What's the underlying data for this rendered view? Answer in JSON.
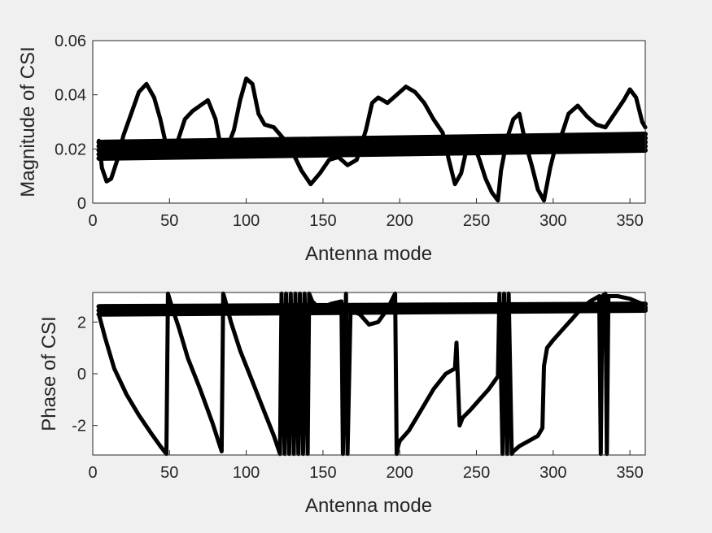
{
  "chart_data": [
    {
      "type": "line",
      "xlabel": "Antenna mode",
      "ylabel": "Magnitude of CSI",
      "xlim": [
        0,
        360
      ],
      "ylim": [
        0,
        0.06
      ],
      "xticks": [
        0,
        50,
        100,
        150,
        200,
        250,
        300,
        350
      ],
      "yticks": [
        0,
        0.02,
        0.04,
        0.06
      ],
      "ytick_labels": [
        "0",
        "0.02",
        "0.04",
        "0.06"
      ],
      "grid": false,
      "line_color": "#000000",
      "series": [
        {
          "x": [
            4,
            6,
            9,
            12,
            16,
            20,
            25,
            30,
            35,
            40,
            44,
            48,
            52,
            56,
            60,
            65,
            70,
            75,
            80,
            84,
            88,
            92,
            96,
            100,
            104,
            108,
            112,
            118,
            124,
            130,
            136,
            142,
            148,
            154,
            160,
            166,
            172,
            178,
            182,
            186,
            192,
            198,
            204,
            210,
            216,
            222,
            228,
            232,
            236,
            240,
            244,
            248,
            252,
            256,
            260,
            264,
            266,
            270,
            274,
            278,
            282,
            286,
            290,
            294,
            298,
            302,
            306,
            310,
            316,
            322,
            328,
            334,
            340,
            346,
            350,
            354,
            358,
            360
          ],
          "y": [
            0.023,
            0.013,
            0.008,
            0.009,
            0.016,
            0.025,
            0.033,
            0.041,
            0.044,
            0.039,
            0.031,
            0.021,
            0.017,
            0.024,
            0.031,
            0.034,
            0.036,
            0.038,
            0.031,
            0.019,
            0.021,
            0.027,
            0.038,
            0.046,
            0.044,
            0.033,
            0.029,
            0.028,
            0.024,
            0.019,
            0.012,
            0.007,
            0.011,
            0.016,
            0.017,
            0.014,
            0.016,
            0.027,
            0.037,
            0.039,
            0.037,
            0.04,
            0.043,
            0.041,
            0.037,
            0.031,
            0.026,
            0.016,
            0.007,
            0.011,
            0.021,
            0.022,
            0.016,
            0.009,
            0.004,
            0.001,
            0.012,
            0.024,
            0.031,
            0.033,
            0.022,
            0.014,
            0.005,
            0.001,
            0.013,
            0.022,
            0.026,
            0.033,
            0.036,
            0.032,
            0.029,
            0.028,
            0.033,
            0.038,
            0.042,
            0.039,
            0.03,
            0.028
          ]
        },
        {
          "x": [
            4,
            360
          ],
          "y": [
            0.0225,
            0.0255
          ]
        },
        {
          "x": [
            4,
            360
          ],
          "y": [
            0.021,
            0.024
          ]
        },
        {
          "x": [
            4,
            360
          ],
          "y": [
            0.0195,
            0.0225
          ]
        },
        {
          "x": [
            4,
            360
          ],
          "y": [
            0.018,
            0.021
          ]
        },
        {
          "x": [
            4,
            360
          ],
          "y": [
            0.0165,
            0.0195
          ]
        }
      ]
    },
    {
      "type": "line",
      "xlabel": "Antenna mode",
      "ylabel": "Phase of CSI",
      "xlim": [
        0,
        360
      ],
      "ylim": [
        -3.1416,
        3.1416
      ],
      "xticks": [
        0,
        50,
        100,
        150,
        200,
        250,
        300,
        350
      ],
      "yticks": [
        -2,
        0,
        2
      ],
      "ytick_labels": [
        "-2",
        "0",
        "2"
      ],
      "grid": false,
      "line_color": "#000000",
      "series": [
        {
          "x": [
            4,
            8,
            14,
            22,
            30,
            38,
            44,
            48,
            49,
            50,
            52,
            56,
            62,
            70,
            78,
            84,
            85,
            86,
            90,
            96,
            104,
            112,
            118,
            122,
            123,
            125,
            126,
            128,
            129,
            131,
            132,
            134,
            135,
            137,
            138,
            140,
            141,
            143,
            148,
            155,
            162,
            163,
            165,
            166,
            168,
            170,
            174,
            180,
            186,
            192,
            197,
            198,
            199,
            200,
            206,
            214,
            222,
            230,
            236,
            237,
            239,
            241,
            246,
            252,
            258,
            264,
            265,
            267,
            268,
            270,
            271,
            273,
            274,
            278,
            284,
            290,
            293,
            294,
            296,
            300,
            306,
            312,
            318,
            324,
            330,
            331,
            332,
            334,
            335,
            336,
            342,
            350,
            358,
            360
          ],
          "y": [
            2.3,
            1.4,
            0.2,
            -0.8,
            -1.6,
            -2.3,
            -2.8,
            -3.1,
            3.1,
            2.9,
            2.5,
            1.8,
            0.6,
            -0.6,
            -1.9,
            -3.0,
            3.1,
            2.9,
            2.0,
            0.9,
            -0.3,
            -1.5,
            -2.4,
            -3.1,
            3.1,
            -3.1,
            3.1,
            -3.1,
            3.1,
            -3.1,
            3.1,
            -3.1,
            3.1,
            -3.1,
            3.1,
            -3.1,
            3.1,
            2.8,
            2.5,
            2.7,
            2.8,
            -3.1,
            3.1,
            -3.1,
            2.6,
            2.4,
            2.3,
            1.9,
            2.0,
            2.5,
            3.1,
            -3.1,
            -2.8,
            -2.6,
            -2.2,
            -1.4,
            -0.6,
            0.0,
            0.2,
            1.2,
            -2.0,
            -1.7,
            -1.4,
            -1.0,
            -0.6,
            -0.1,
            3.1,
            -3.1,
            3.1,
            -3.1,
            3.1,
            -3.1,
            -3.0,
            -2.8,
            -2.6,
            -2.4,
            -2.1,
            0.3,
            1.0,
            1.3,
            1.7,
            2.1,
            2.5,
            2.8,
            3.0,
            -3.1,
            3.0,
            3.1,
            -3.1,
            3.0,
            3.0,
            2.9,
            2.7,
            2.6
          ]
        },
        {
          "x": [
            4,
            360
          ],
          "y": [
            2.6,
            2.7
          ]
        },
        {
          "x": [
            4,
            360
          ],
          "y": [
            2.45,
            2.55
          ]
        },
        {
          "x": [
            4,
            360
          ],
          "y": [
            2.3,
            2.45
          ]
        }
      ]
    }
  ]
}
